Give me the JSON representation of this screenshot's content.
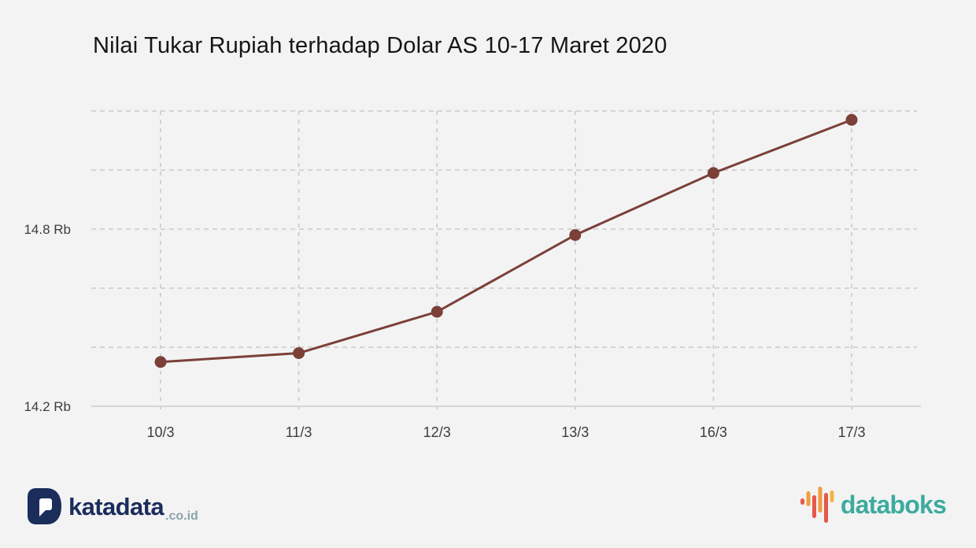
{
  "title": "Nilai Tukar Rupiah terhadap Dolar AS 10-17 Maret 2020",
  "chart_data": {
    "type": "line",
    "series_name": "Nilai tukar rupiah terhadap dolar AS",
    "categories": [
      "10/3",
      "11/3",
      "12/3",
      "13/3",
      "16/3",
      "17/3"
    ],
    "values": [
      14.35,
      14.38,
      14.52,
      14.78,
      14.99,
      15.17
    ],
    "unit": "Rb",
    "xlabel": "",
    "ylabel": "",
    "ylim": [
      14.2,
      15.2
    ],
    "y_tick_step": 0.2,
    "y_tick_labels": [
      {
        "value": 14.8,
        "label": "14.8 Rb"
      },
      {
        "value": 14.2,
        "label": "14.2 Rb"
      }
    ],
    "grid": "dashed",
    "legend": "none",
    "line_color": "#7b4038",
    "point_color": "#7b4038"
  },
  "footer": {
    "katadata": {
      "wordmark": "katadata",
      "suffix": ".co.id",
      "brand_color": "#1b2d5b",
      "suffix_color": "#8aa3ad"
    },
    "databoks": {
      "wordmark": "databoks",
      "brand_color": "#3cab9e",
      "icon_bar_colors": [
        "#e65849",
        "#f09d3d",
        "#e65849",
        "#f09d3d",
        "#e65849",
        "#f3b442"
      ]
    }
  }
}
